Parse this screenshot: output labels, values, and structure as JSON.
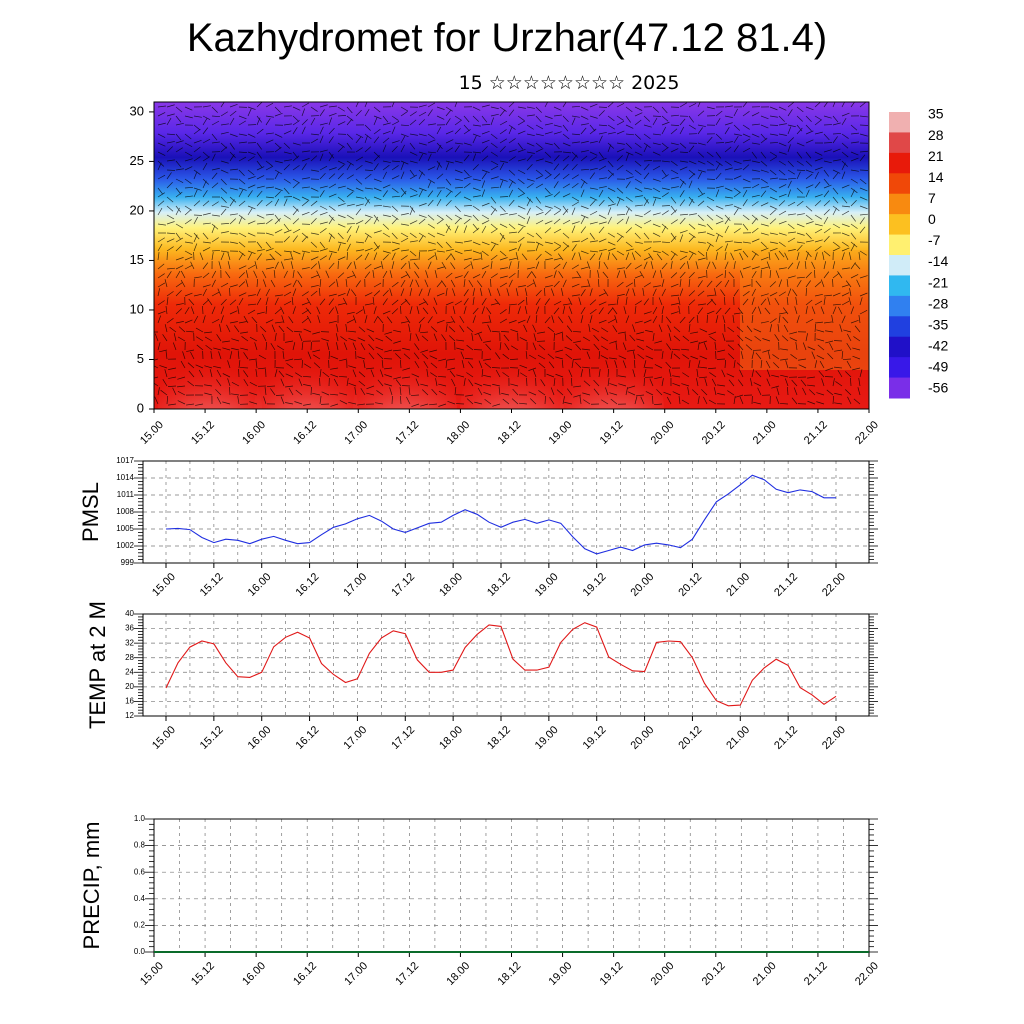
{
  "header": {
    "title": "Kazhydromet for Urzhar(47.12 81.4)",
    "subtitle": "15 ☆☆☆☆☆☆☆☆ 2025"
  },
  "colors": {
    "pmsl_line": "#1f2ee0",
    "temp_line": "#e01818",
    "precip_line": "#0a6b2a",
    "grid": "#777777",
    "wind_barbs": "#000000"
  },
  "chart_data": [
    {
      "type": "heatmap",
      "title": "",
      "ylabel": "",
      "ylim": [
        0,
        31
      ],
      "y_ticks": [
        "0",
        "5",
        "10",
        "15",
        "20",
        "25",
        "30"
      ],
      "x_ticks": [
        "15.00",
        "15.12",
        "16.00",
        "16.12",
        "17.00",
        "17.12",
        "18.00",
        "18.12",
        "19.00",
        "19.12",
        "20.00",
        "20.12",
        "21.00",
        "21.12",
        "22.00"
      ],
      "colorbar_labels": [
        "35",
        "28",
        "21",
        "14",
        "7",
        "0",
        "-7",
        "-14",
        "-21",
        "-28",
        "-35",
        "-42",
        "-49",
        "-56"
      ],
      "colorbar_colors": [
        "#f0b0b0",
        "#e04848",
        "#e81a0a",
        "#f04808",
        "#f88a10",
        "#fcc020",
        "#fff070",
        "#d0ecf8",
        "#30b8f0",
        "#3080f0",
        "#2040e0",
        "#2010c8",
        "#3818e8",
        "#7a2ee8"
      ],
      "value_range": [
        -60,
        38
      ],
      "overlay": "wind vectors"
    },
    {
      "type": "line",
      "ylabel": "PMSL",
      "ylim": [
        999,
        1017
      ],
      "y_ticks": [
        "999",
        "1002",
        "1005",
        "1008",
        "1011",
        "1014",
        "1017"
      ],
      "x_ticks": [
        "15.00",
        "15.12",
        "16.00",
        "16.12",
        "17.00",
        "17.12",
        "18.00",
        "18.12",
        "19.00",
        "19.12",
        "20.00",
        "20.12",
        "21.00",
        "21.12",
        "22.00"
      ],
      "x": [
        0,
        3,
        6,
        9,
        12,
        15,
        18,
        21,
        24,
        27,
        30,
        33,
        36,
        39,
        42,
        45,
        48,
        51,
        54,
        57,
        60,
        63,
        66,
        69,
        72,
        75,
        78,
        81,
        84,
        87,
        90,
        93,
        96,
        99,
        102,
        105,
        108,
        111,
        114,
        117,
        120,
        123,
        126,
        129,
        132,
        135,
        138,
        141,
        144,
        147,
        150,
        153,
        156,
        159,
        162,
        165,
        168
      ],
      "series": [
        {
          "values": [
            1005.0,
            1005.1,
            1004.9,
            1003.5,
            1002.6,
            1003.2,
            1003.0,
            1002.4,
            1003.2,
            1003.7,
            1003.0,
            1002.4,
            1002.6,
            1004.0,
            1005.3,
            1005.9,
            1006.8,
            1007.4,
            1006.4,
            1005.0,
            1004.4,
            1005.2,
            1006.0,
            1006.2,
            1007.4,
            1008.4,
            1007.6,
            1006.2,
            1005.3,
            1006.2,
            1006.7,
            1006.0,
            1006.6,
            1006.0,
            1003.6,
            1001.5,
            1000.6,
            1001.2,
            1001.8,
            1001.2,
            1002.2,
            1002.5,
            1002.2,
            1001.7,
            1003.2,
            1006.6,
            1009.8,
            1011.2,
            1012.8,
            1014.5,
            1013.7,
            1012.0,
            1011.4,
            1011.9,
            1011.6,
            1010.5,
            1010.5
          ]
        }
      ]
    },
    {
      "type": "line",
      "ylabel": "TEMP at 2 M",
      "ylim": [
        12,
        40
      ],
      "y_ticks": [
        "12",
        "16",
        "20",
        "24",
        "28",
        "32",
        "36",
        "40"
      ],
      "x_ticks": [
        "15.00",
        "15.12",
        "16.00",
        "16.12",
        "17.00",
        "17.12",
        "18.00",
        "18.12",
        "19.00",
        "19.12",
        "20.00",
        "20.12",
        "21.00",
        "21.12",
        "22.00"
      ],
      "x": [
        0,
        3,
        6,
        9,
        12,
        15,
        18,
        21,
        24,
        27,
        30,
        33,
        36,
        39,
        42,
        45,
        48,
        51,
        54,
        57,
        60,
        63,
        66,
        69,
        72,
        75,
        78,
        81,
        84,
        87,
        90,
        93,
        96,
        99,
        102,
        105,
        108,
        111,
        114,
        117,
        120,
        123,
        126,
        129,
        132,
        135,
        138,
        141,
        144,
        147,
        150,
        153,
        156,
        159,
        162,
        165,
        168
      ],
      "series": [
        {
          "values": [
            19.7,
            26.6,
            30.9,
            32.6,
            31.8,
            26.6,
            22.8,
            22.6,
            24.0,
            31.0,
            33.6,
            35.0,
            33.4,
            26.4,
            23.4,
            21.2,
            22.2,
            29.2,
            33.4,
            35.4,
            34.6,
            27.4,
            24.0,
            24.0,
            24.6,
            30.8,
            34.4,
            37.0,
            36.6,
            27.6,
            24.6,
            24.6,
            25.4,
            32.2,
            35.8,
            37.6,
            36.4,
            28.2,
            26.2,
            24.4,
            24.2,
            32.2,
            32.6,
            32.4,
            28.0,
            21.0,
            16.2,
            14.8,
            15.0,
            21.8,
            25.2,
            27.6,
            25.9,
            19.8,
            17.8,
            15.2,
            17.4
          ]
        }
      ]
    },
    {
      "type": "line",
      "ylabel": "PRECIP, mm",
      "ylim": [
        0.0,
        1.0
      ],
      "y_ticks": [
        "0.0",
        "0.2",
        "0.4",
        "0.6",
        "0.8",
        "1.0"
      ],
      "x_ticks": [
        "15.00",
        "15.12",
        "16.00",
        "16.12",
        "17.00",
        "17.12",
        "18.00",
        "18.12",
        "19.00",
        "19.12",
        "20.00",
        "20.12",
        "21.00",
        "21.12",
        "22.00"
      ],
      "x": [
        0,
        168
      ],
      "series": [
        {
          "values": [
            0.0,
            0.0
          ]
        }
      ]
    }
  ]
}
